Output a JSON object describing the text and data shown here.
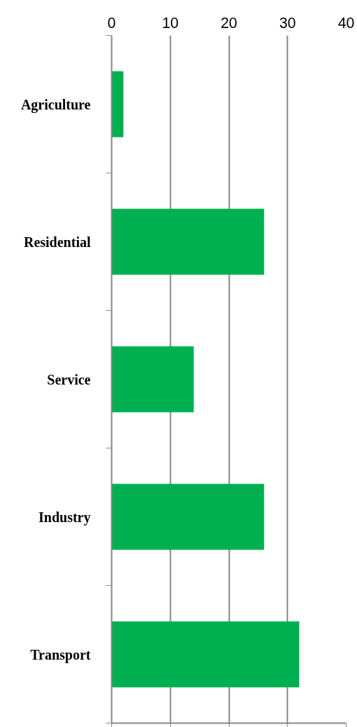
{
  "chart_data": {
    "type": "bar",
    "orientation": "horizontal",
    "categories": [
      "Agriculture",
      "Residential",
      "Service",
      "Industry",
      "Transport"
    ],
    "values": [
      2,
      26,
      14,
      26,
      32
    ],
    "color": "#00b050",
    "xlim": [
      0,
      40
    ],
    "xticks": [
      0,
      10,
      20,
      30,
      40
    ],
    "grid": "x"
  }
}
